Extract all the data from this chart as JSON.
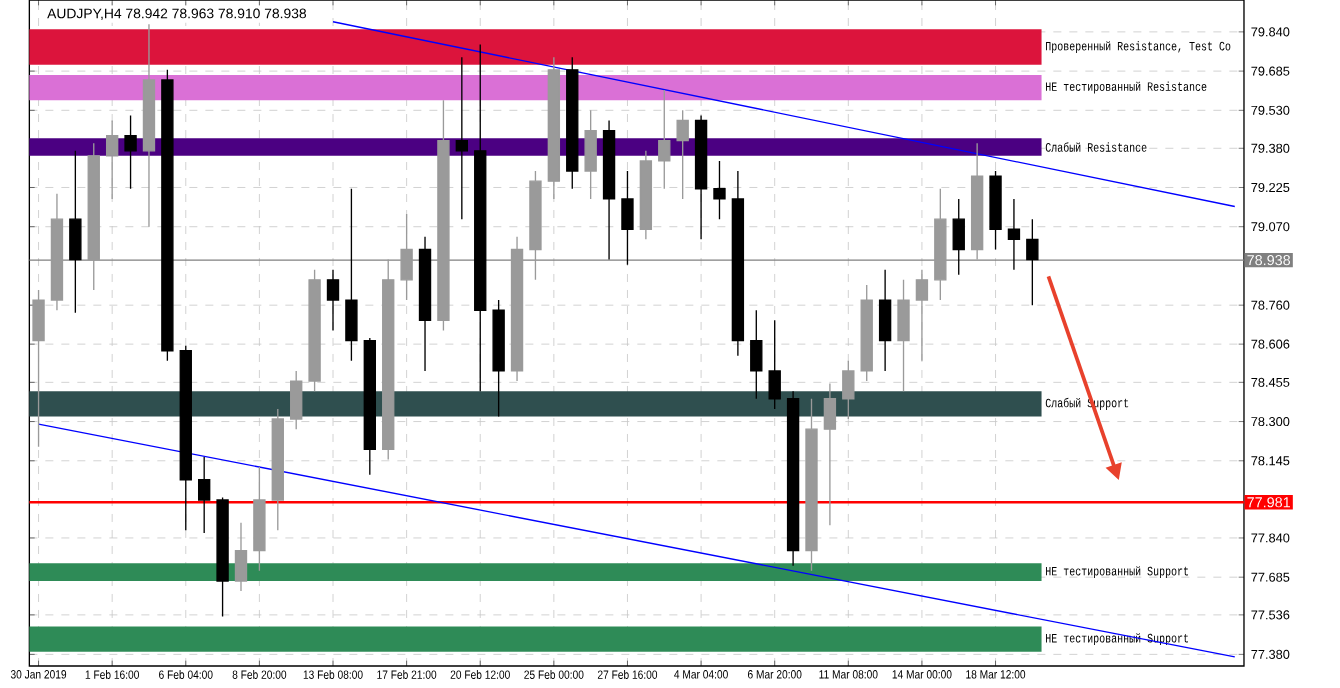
{
  "chart_data": {
    "type": "candlestick",
    "title": "AUDJPY,H4 78.942 78.963 78.910 78.938",
    "categories": [
      "30 Jan 2019",
      null,
      null,
      null,
      "1 Feb 16:00",
      null,
      null,
      null,
      "6 Feb 04:00",
      null,
      null,
      null,
      "8 Feb 20:00",
      null,
      null,
      null,
      "13 Feb 08:00",
      null,
      null,
      null,
      "17 Feb 21:00",
      null,
      null,
      null,
      "20 Feb 12:00",
      null,
      null,
      null,
      "25 Feb 00:00",
      null,
      null,
      null,
      "27 Feb 16:00",
      null,
      null,
      null,
      "4 Mar 04:00",
      null,
      null,
      null,
      "6 Mar 20:00",
      null,
      null,
      null,
      "11 Mar 08:00",
      null,
      null,
      null,
      "14 Mar 00:00",
      null,
      null,
      null,
      "18 Mar 12:00",
      null,
      null,
      null,
      null,
      null,
      null,
      null,
      null,
      null,
      null,
      null,
      null,
      null
    ],
    "ohlc": [
      [
        78.62,
        78.82,
        78.2,
        78.78
      ],
      [
        78.78,
        79.2,
        78.74,
        79.1
      ],
      [
        79.1,
        79.37,
        78.73,
        78.94
      ],
      [
        78.94,
        79.4,
        78.82,
        79.35
      ],
      [
        79.35,
        79.49,
        79.18,
        79.43
      ],
      [
        79.43,
        79.51,
        79.22,
        79.37
      ],
      [
        79.37,
        79.87,
        79.07,
        79.65
      ],
      [
        79.65,
        79.69,
        78.54,
        78.58
      ],
      [
        78.58,
        78.6,
        77.87,
        78.07
      ],
      [
        78.07,
        78.16,
        77.86,
        77.99
      ],
      [
        77.99,
        78.0,
        77.53,
        77.67
      ],
      [
        77.67,
        77.9,
        77.63,
        77.79
      ],
      [
        77.79,
        78.12,
        77.71,
        77.99
      ],
      [
        77.99,
        78.35,
        77.87,
        78.31
      ],
      [
        78.31,
        78.5,
        78.27,
        78.46
      ],
      [
        78.46,
        78.9,
        78.42,
        78.86
      ],
      [
        78.86,
        78.9,
        78.66,
        78.78
      ],
      [
        78.78,
        79.22,
        78.54,
        78.62
      ],
      [
        78.62,
        78.63,
        78.09,
        78.19
      ],
      [
        78.19,
        78.94,
        78.15,
        78.86
      ],
      [
        78.86,
        79.12,
        78.78,
        78.98
      ],
      [
        78.98,
        79.03,
        78.5,
        78.7
      ],
      [
        78.7,
        79.57,
        78.66,
        79.41
      ],
      [
        79.41,
        79.74,
        79.1,
        79.37
      ],
      [
        79.37,
        79.79,
        78.42,
        78.74
      ],
      [
        78.74,
        78.78,
        78.32,
        78.5
      ],
      [
        78.5,
        79.03,
        78.46,
        78.98
      ],
      [
        78.98,
        79.29,
        78.86,
        79.25
      ],
      [
        79.25,
        79.74,
        79.18,
        79.69
      ],
      [
        79.69,
        79.74,
        79.22,
        79.29
      ],
      [
        79.29,
        79.53,
        79.18,
        79.45
      ],
      [
        79.45,
        79.49,
        78.94,
        79.18
      ],
      [
        79.18,
        79.29,
        78.92,
        79.06
      ],
      [
        79.06,
        79.37,
        79.02,
        79.33
      ],
      [
        79.33,
        79.61,
        79.22,
        79.41
      ],
      [
        79.41,
        79.53,
        79.18,
        79.49
      ],
      [
        79.49,
        79.51,
        79.02,
        79.22
      ],
      [
        79.22,
        79.33,
        79.1,
        79.18
      ],
      [
        79.18,
        79.29,
        78.56,
        78.62
      ],
      [
        78.62,
        78.74,
        78.39,
        78.5
      ],
      [
        78.5,
        78.7,
        78.35,
        78.39
      ],
      [
        78.39,
        78.42,
        77.73,
        77.79
      ],
      [
        77.79,
        78.39,
        77.71,
        78.27
      ],
      [
        78.27,
        78.45,
        77.89,
        78.39
      ],
      [
        78.39,
        78.54,
        78.31,
        78.5
      ],
      [
        78.5,
        78.84,
        78.46,
        78.78
      ],
      [
        78.78,
        78.9,
        78.5,
        78.62
      ],
      [
        78.62,
        78.86,
        78.42,
        78.78
      ],
      [
        78.78,
        78.9,
        78.54,
        78.86
      ],
      [
        78.86,
        79.22,
        78.78,
        79.1
      ],
      [
        79.1,
        79.18,
        78.88,
        78.98
      ],
      [
        78.98,
        79.4,
        78.94,
        79.27
      ],
      [
        79.27,
        79.29,
        78.98,
        79.06
      ],
      [
        79.06,
        79.18,
        78.9,
        79.02
      ],
      [
        79.02,
        79.1,
        78.76,
        78.94
      ],
      null,
      null,
      null,
      null,
      null,
      null,
      null,
      null,
      null,
      null,
      null
    ],
    "series": [
      {
        "type": "line",
        "values": [
          null,
          null,
          null,
          null,
          null,
          null,
          null,
          null,
          null,
          null,
          null,
          null,
          null,
          null,
          null,
          null,
          79.88,
          null,
          null,
          null,
          null,
          null,
          null,
          null,
          null,
          null,
          null,
          null,
          null,
          null,
          null,
          null,
          null,
          null,
          null,
          null,
          null,
          null,
          null,
          null,
          null,
          null,
          null,
          null,
          null,
          null,
          null,
          null,
          null,
          null,
          null,
          null,
          null,
          null,
          null,
          null,
          null,
          null,
          null,
          null,
          null,
          null,
          null,
          null,
          null,
          79.15
        ],
        "color": "#0000ff"
      },
      {
        "type": "line",
        "values": [
          78.29,
          null,
          null,
          null,
          null,
          null,
          null,
          null,
          null,
          null,
          null,
          null,
          null,
          null,
          null,
          null,
          null,
          null,
          null,
          null,
          null,
          null,
          null,
          null,
          null,
          null,
          null,
          null,
          null,
          null,
          null,
          null,
          null,
          null,
          null,
          null,
          null,
          null,
          null,
          null,
          null,
          null,
          null,
          null,
          null,
          null,
          null,
          null,
          null,
          null,
          null,
          null,
          null,
          null,
          null,
          null,
          null,
          null,
          null,
          null,
          null,
          null,
          null,
          null,
          null,
          77.37
        ],
        "color": "#0000ff"
      }
    ],
    "ylim": [
      77.334,
      79.966
    ],
    "yticks": [
      {
        "value": 77.38,
        "label": "77.380"
      },
      {
        "value": 77.536,
        "label": "77.536"
      },
      {
        "value": 77.685,
        "label": "77.685"
      },
      {
        "value": 77.84,
        "label": "77.840"
      },
      {
        "value": 78.145,
        "label": "78.145"
      },
      {
        "value": 78.3,
        "label": "78.300"
      },
      {
        "value": 78.455,
        "label": "78.455"
      },
      {
        "value": 78.606,
        "label": "78.606"
      },
      {
        "value": 78.76,
        "label": "78.760"
      },
      {
        "value": 79.07,
        "label": "79.070"
      },
      {
        "value": 79.225,
        "label": "79.225"
      },
      {
        "value": 79.38,
        "label": "79.380"
      },
      {
        "value": 79.53,
        "label": "79.530"
      },
      {
        "value": 79.685,
        "label": "79.685"
      },
      {
        "value": 79.84,
        "label": "79.840"
      }
    ],
    "grid": true,
    "ref_lines": [
      {
        "axis": "y",
        "value": 77.981,
        "label": "77.981",
        "color": "#ff0000"
      },
      {
        "axis": "y",
        "value": 78.938,
        "label": "78.938",
        "color": "#808080"
      }
    ],
    "bands": [
      {
        "axis": "y",
        "from": 79.71,
        "to": 79.85,
        "label": "Проверенный Resistance, Test Co",
        "color": "#dc143c"
      },
      {
        "axis": "y",
        "from": 79.57,
        "to": 79.67,
        "label": "НЕ тестированный Resistance",
        "color": "#da70d6"
      },
      {
        "axis": "y",
        "from": 79.35,
        "to": 79.42,
        "label": "Слабый Resistance",
        "color": "#4b0082"
      },
      {
        "axis": "y",
        "from": 78.32,
        "to": 78.42,
        "label": "Слабый Support",
        "color": "#2f4f4f"
      },
      {
        "axis": "y",
        "from": 77.67,
        "to": 77.74,
        "label": "НЕ тестированный Support",
        "color": "#2e8b57"
      },
      {
        "axis": "y",
        "from": 77.39,
        "to": 77.49,
        "label": "НЕ тестированный Support",
        "color": "#2e8b57"
      }
    ]
  }
}
